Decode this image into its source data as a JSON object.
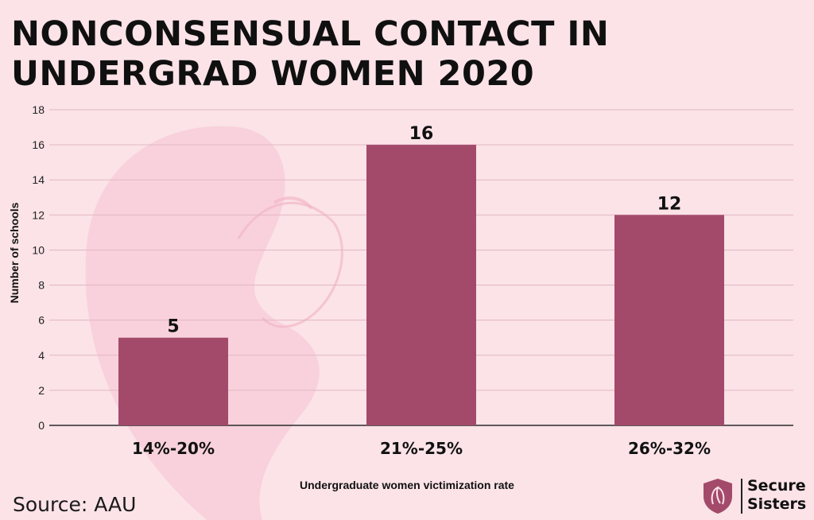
{
  "title": "NONCONSENSUAL CONTACT IN UNDERGRAD WOMEN 2020",
  "source": "Source: AAU",
  "brand": {
    "line1": "Secure",
    "line2": "Sisters"
  },
  "colors": {
    "background": "#fbe3e8",
    "bar": "#a34a6b",
    "grid": "#e2b7c3",
    "logo": "#a34a6b"
  },
  "chart_data": {
    "type": "bar",
    "title": "NONCONSENSUAL CONTACT IN UNDERGRAD WOMEN 2020",
    "xlabel": "Undergraduate women victimization rate",
    "ylabel": "Number of schools",
    "categories": [
      "14%-20%",
      "21%-25%",
      "26%-32%"
    ],
    "values": [
      5,
      16,
      12
    ],
    "data_labels": [
      "5",
      "16",
      "12"
    ],
    "ylim": [
      0,
      18
    ],
    "yticks": [
      0,
      2,
      4,
      6,
      8,
      10,
      12,
      14,
      16,
      18
    ],
    "grid": true,
    "legend": "none"
  }
}
